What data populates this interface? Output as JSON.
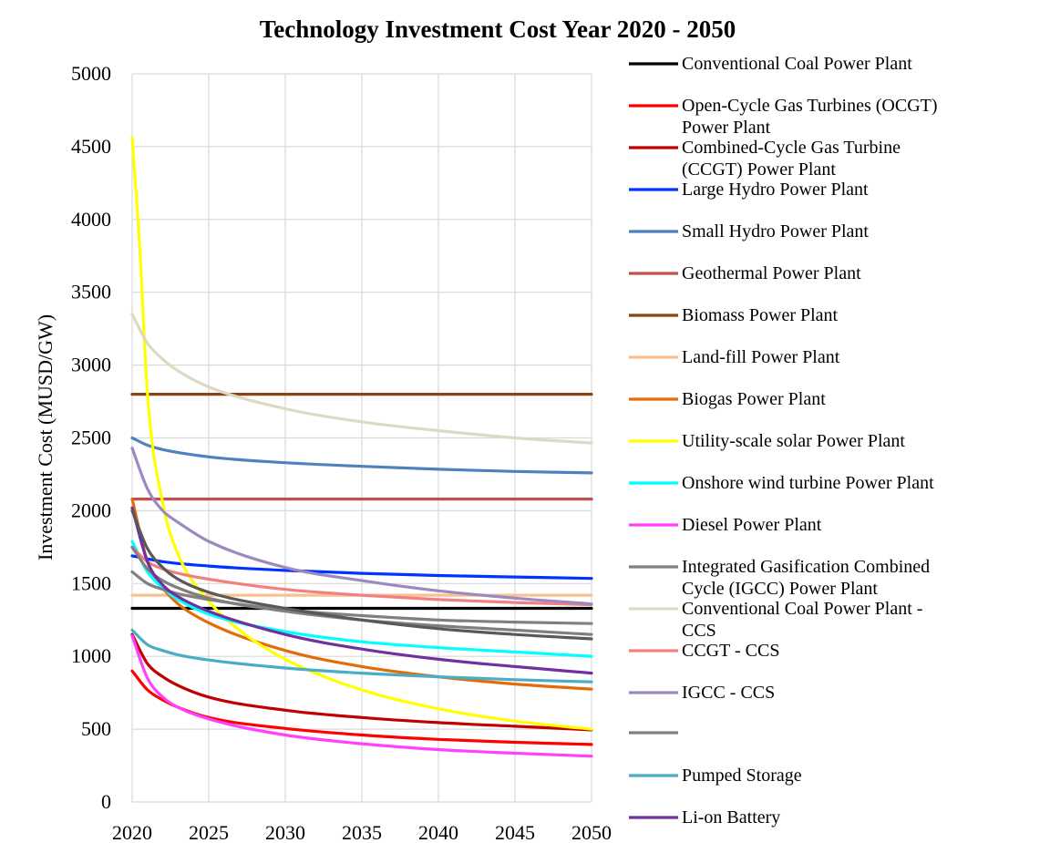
{
  "chart_data": {
    "type": "line",
    "title": "Technology Investment Cost Year 2020 - 2050",
    "ylabel": "Investment Cost (MUSD/GW)",
    "xlabel": "",
    "xlim": [
      2020,
      2050
    ],
    "ylim": [
      0,
      5000
    ],
    "xticks": [
      2020,
      2025,
      2030,
      2035,
      2040,
      2045,
      2050
    ],
    "yticks": [
      0,
      500,
      1000,
      1500,
      2000,
      2500,
      3000,
      3500,
      4000,
      4500,
      5000
    ],
    "grid": true,
    "legend_position": "right",
    "series": [
      {
        "name": "Conventional Coal Power Plant",
        "color": "#000000",
        "legend_lines": [
          "Conventional Coal Power Plant"
        ],
        "x": [
          2020,
          2025,
          2030,
          2035,
          2040,
          2045,
          2050
        ],
        "y": [
          1330,
          1330,
          1330,
          1330,
          1330,
          1330,
          1330
        ]
      },
      {
        "name": "Open-Cycle Gas Turbines (OCGT) Power Plant",
        "color": "#ff0000",
        "legend_lines": [
          "Open-Cycle Gas Turbines (OCGT)",
          "Power Plant"
        ],
        "x": [
          2020,
          2021,
          2022,
          2023,
          2025,
          2030,
          2035,
          2040,
          2045,
          2050
        ],
        "y": [
          900,
          770,
          700,
          650,
          580,
          505,
          460,
          430,
          410,
          395
        ]
      },
      {
        "name": "Combined-Cycle Gas Turbine (CCGT) Power Plant",
        "color": "#c00000",
        "legend_lines": [
          "Combined-Cycle Gas Turbine",
          "(CCGT) Power Plant"
        ],
        "x": [
          2020,
          2021,
          2022,
          2023,
          2025,
          2030,
          2035,
          2040,
          2045,
          2050
        ],
        "y": [
          1150,
          950,
          860,
          800,
          720,
          630,
          580,
          545,
          520,
          495
        ]
      },
      {
        "name": "Large Hydro Power Plant",
        "color": "#0033ff",
        "legend_lines": [
          "Large Hydro Power Plant"
        ],
        "x": [
          2020,
          2022,
          2025,
          2030,
          2035,
          2040,
          2045,
          2050
        ],
        "y": [
          1690,
          1650,
          1620,
          1590,
          1570,
          1555,
          1545,
          1535
        ]
      },
      {
        "name": "Small Hydro Power Plant",
        "color": "#4f81bd",
        "legend_lines": [
          "Small Hydro Power Plant"
        ],
        "x": [
          2020,
          2021,
          2022,
          2025,
          2030,
          2035,
          2040,
          2045,
          2050
        ],
        "y": [
          2500,
          2450,
          2420,
          2370,
          2330,
          2305,
          2285,
          2270,
          2260
        ]
      },
      {
        "name": "Geothermal Power Plant",
        "color": "#c0504d",
        "legend_lines": [
          "Geothermal Power Plant"
        ],
        "x": [
          2020,
          2025,
          2030,
          2035,
          2040,
          2045,
          2050
        ],
        "y": [
          2080,
          2080,
          2080,
          2080,
          2080,
          2080,
          2080
        ]
      },
      {
        "name": "Biomass Power Plant",
        "color": "#8b4513",
        "legend_lines": [
          "Biomass Power Plant"
        ],
        "x": [
          2020,
          2025,
          2030,
          2035,
          2040,
          2045,
          2050
        ],
        "y": [
          2800,
          2800,
          2800,
          2800,
          2800,
          2800,
          2800
        ]
      },
      {
        "name": "Land-fill Power Plant",
        "color": "#fac090",
        "legend_lines": [
          "Land-fill Power Plant"
        ],
        "x": [
          2020,
          2025,
          2030,
          2035,
          2040,
          2045,
          2050
        ],
        "y": [
          1420,
          1420,
          1420,
          1420,
          1420,
          1420,
          1420
        ]
      },
      {
        "name": "Biogas Power Plant",
        "color": "#e36c09",
        "legend_lines": [
          "Biogas Power Plant"
        ],
        "x": [
          2020,
          2021,
          2022,
          2023,
          2025,
          2030,
          2035,
          2040,
          2045,
          2050
        ],
        "y": [
          2080,
          1650,
          1470,
          1360,
          1230,
          1040,
          930,
          860,
          810,
          775
        ]
      },
      {
        "name": "Utility-scale solar Power Plant",
        "color": "#ffff00",
        "legend_lines": [
          "Utility-scale solar Power Plant"
        ],
        "x": [
          2020,
          2020.5,
          2021,
          2022,
          2023,
          2025,
          2027,
          2030,
          2035,
          2040,
          2045,
          2050
        ],
        "y": [
          4560,
          3800,
          2800,
          2050,
          1700,
          1380,
          1180,
          980,
          770,
          640,
          555,
          500
        ]
      },
      {
        "name": "Onshore wind turbine Power Plant",
        "color": "#00ffff",
        "legend_lines": [
          "Onshore wind turbine Power Plant"
        ],
        "x": [
          2020,
          2021,
          2022,
          2023,
          2025,
          2030,
          2035,
          2040,
          2045,
          2050
        ],
        "y": [
          1790,
          1580,
          1470,
          1390,
          1290,
          1170,
          1100,
          1060,
          1030,
          1000
        ]
      },
      {
        "name": "Diesel Power Plant",
        "color": "#ff40ff",
        "legend_lines": [
          "Diesel Power Plant"
        ],
        "x": [
          2020,
          2021,
          2022,
          2023,
          2025,
          2030,
          2035,
          2040,
          2045,
          2050
        ],
        "y": [
          1140,
          850,
          720,
          650,
          570,
          460,
          400,
          360,
          335,
          315
        ]
      },
      {
        "name": "Integrated Gasification Combined Cycle (IGCC) Power Plant",
        "color": "#808080",
        "legend_lines": [
          "Integrated Gasification Combined",
          "Cycle (IGCC) Power Plant"
        ],
        "x": [
          2020,
          2021,
          2022,
          2023,
          2025,
          2030,
          2035,
          2040,
          2045,
          2050
        ],
        "y": [
          1580,
          1500,
          1460,
          1430,
          1390,
          1320,
          1280,
          1250,
          1235,
          1225
        ]
      },
      {
        "name": "Conventional Coal Power Plant - CCS",
        "color": "#ddd9c3",
        "legend_lines": [
          "Conventional Coal Power Plant -",
          "CCS"
        ],
        "x": [
          2020,
          2021,
          2022,
          2023,
          2025,
          2030,
          2035,
          2040,
          2045,
          2050
        ],
        "y": [
          3350,
          3150,
          3040,
          2960,
          2850,
          2700,
          2610,
          2550,
          2500,
          2465
        ]
      },
      {
        "name": "CCGT - CCS",
        "color": "#f28080",
        "legend_lines": [
          "CCGT - CCS"
        ],
        "x": [
          2020,
          2021,
          2022,
          2023,
          2025,
          2030,
          2035,
          2040,
          2045,
          2050
        ],
        "y": [
          1750,
          1650,
          1600,
          1570,
          1530,
          1460,
          1420,
          1390,
          1370,
          1355
        ]
      },
      {
        "name": "IGCC - CCS",
        "color": "#9d89c1",
        "legend_lines": [
          "IGCC - CCS"
        ],
        "x": [
          2020,
          2021,
          2022,
          2023,
          2025,
          2030,
          2035,
          2040,
          2045,
          2050
        ],
        "y": [
          2430,
          2150,
          2000,
          1920,
          1790,
          1610,
          1520,
          1450,
          1400,
          1360
        ]
      },
      {
        "name": "",
        "color": "#7f7f7f",
        "legend_lines": [
          ""
        ],
        "x": [
          2020,
          2021,
          2022,
          2023,
          2025,
          2030,
          2035,
          2040,
          2045,
          2050
        ],
        "y": [
          1750,
          1600,
          1520,
          1470,
          1400,
          1310,
          1250,
          1210,
          1180,
          1150
        ]
      },
      {
        "name": "Pumped Storage",
        "color": "#4bacc6",
        "legend_lines": [
          "Pumped Storage"
        ],
        "x": [
          2020,
          2021,
          2022,
          2023,
          2025,
          2030,
          2035,
          2040,
          2045,
          2050
        ],
        "y": [
          1180,
          1080,
          1040,
          1010,
          975,
          920,
          885,
          860,
          840,
          825
        ]
      },
      {
        "name": "Li-on Battery",
        "color": "#7030a0",
        "legend_lines": [
          "Li-on Battery"
        ],
        "x": [
          2020,
          2021,
          2022,
          2023,
          2025,
          2030,
          2035,
          2040,
          2045,
          2050
        ],
        "y": [
          2020,
          1650,
          1490,
          1410,
          1310,
          1150,
          1050,
          980,
          930,
          885
        ]
      },
      {
        "name": "",
        "color": "#595959",
        "legend_lines": null,
        "x": [
          2020,
          2021,
          2022,
          2023,
          2025,
          2030,
          2035,
          2040,
          2045,
          2050
        ],
        "y": [
          2000,
          1740,
          1610,
          1530,
          1440,
          1330,
          1250,
          1190,
          1150,
          1120
        ]
      }
    ]
  }
}
